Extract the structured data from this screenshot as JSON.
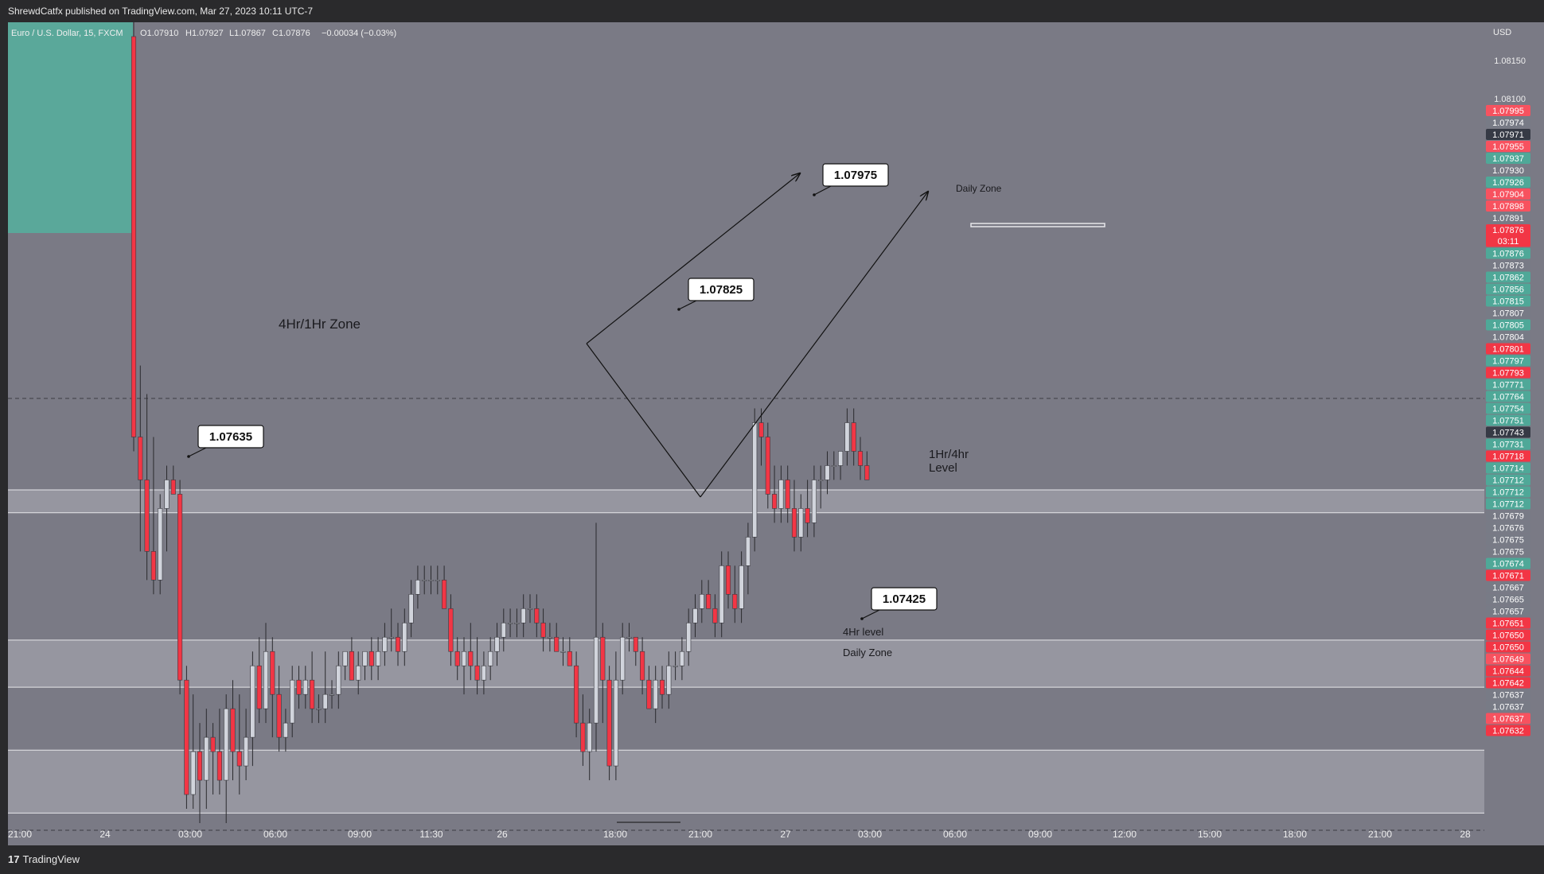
{
  "header": {
    "published_by": "ShrewdCatfx published on TradingView.com, Mar 27, 2023 10:11 UTC-7"
  },
  "footer": {
    "brand": "TradingView"
  },
  "colors": {
    "background": "#7a7a85",
    "up": "#d1d4dc",
    "down": "#f23645",
    "zone": "#a0a0a9",
    "teal": "#5aa89a"
  },
  "chart_data": {
    "type": "candlestick",
    "symbol_line": "Euro / U.S. Dollar, 15, FXCM",
    "ohlc": {
      "O": "O1.07910",
      "H": "H1.07927",
      "L": "L1.07867",
      "C": "C1.07876",
      "change": "−0.00034 (−0.03%)"
    },
    "currency": "USD",
    "ylim": [
      1.0762,
      1.0819
    ],
    "time_ticks": [
      "21:00",
      "24",
      "03:00",
      "06:00",
      "09:00",
      "11:30",
      "26",
      "18:00",
      "21:00",
      "27",
      "03:00",
      "06:00",
      "09:00",
      "12:00",
      "15:00",
      "18:00",
      "21:00",
      "28"
    ],
    "price_ticks": [
      "1.08150",
      "1.08100"
    ],
    "price_labels": [
      {
        "value": "1.07995",
        "color": "lightred"
      },
      {
        "value": "1.07974",
        "color": "gray"
      },
      {
        "value": "1.07971",
        "color": "dark"
      },
      {
        "value": "1.07955",
        "color": "lightred"
      },
      {
        "value": "1.07937",
        "color": "teal"
      },
      {
        "value": "1.07930",
        "color": "gray"
      },
      {
        "value": "1.07926",
        "color": "teal"
      },
      {
        "value": "1.07904",
        "color": "lightred"
      },
      {
        "value": "1.07898",
        "color": "lightred"
      },
      {
        "value": "1.07891",
        "color": "gray"
      },
      {
        "value": "1.07876",
        "color": "red",
        "sub": "03:11"
      },
      {
        "value": "1.07876",
        "color": "teal"
      },
      {
        "value": "1.07873",
        "color": "gray"
      },
      {
        "value": "1.07862",
        "color": "teal"
      },
      {
        "value": "1.07856",
        "color": "teal"
      },
      {
        "value": "1.07815",
        "color": "teal"
      },
      {
        "value": "1.07807",
        "color": "gray"
      },
      {
        "value": "1.07805",
        "color": "teal"
      },
      {
        "value": "1.07804",
        "color": "gray"
      },
      {
        "value": "1.07801",
        "color": "red"
      },
      {
        "value": "1.07797",
        "color": "teal"
      },
      {
        "value": "1.07793",
        "color": "red"
      },
      {
        "value": "1.07771",
        "color": "teal"
      },
      {
        "value": "1.07764",
        "color": "teal"
      },
      {
        "value": "1.07754",
        "color": "teal"
      },
      {
        "value": "1.07751",
        "color": "teal"
      },
      {
        "value": "1.07743",
        "color": "dark"
      },
      {
        "value": "1.07731",
        "color": "teal"
      },
      {
        "value": "1.07718",
        "color": "red"
      },
      {
        "value": "1.07714",
        "color": "teal"
      },
      {
        "value": "1.07712",
        "color": "teal"
      },
      {
        "value": "1.07712",
        "color": "teal"
      },
      {
        "value": "1.07712",
        "color": "teal"
      },
      {
        "value": "1.07679",
        "color": "gray"
      },
      {
        "value": "1.07676",
        "color": "gray"
      },
      {
        "value": "1.07675",
        "color": "gray"
      },
      {
        "value": "1.07675",
        "color": "gray"
      },
      {
        "value": "1.07674",
        "color": "teal"
      },
      {
        "value": "1.07671",
        "color": "red"
      },
      {
        "value": "1.07667",
        "color": "gray"
      },
      {
        "value": "1.07665",
        "color": "gray"
      },
      {
        "value": "1.07657",
        "color": "gray"
      },
      {
        "value": "1.07651",
        "color": "red"
      },
      {
        "value": "1.07650",
        "color": "red"
      },
      {
        "value": "1.07650",
        "color": "red"
      },
      {
        "value": "1.07649",
        "color": "lightred"
      },
      {
        "value": "1.07644",
        "color": "red"
      },
      {
        "value": "1.07642",
        "color": "red"
      },
      {
        "value": "1.07637",
        "color": "gray"
      },
      {
        "value": "1.07637",
        "color": "gray"
      },
      {
        "value": "1.07637",
        "color": "lightred"
      },
      {
        "value": "1.07632",
        "color": "red"
      }
    ],
    "zones": [
      {
        "name": "4Hr/1Hr Zone",
        "top": 1.07863,
        "bottom": 1.07847
      },
      {
        "name": "1Hr/4hr Level",
        "top": 1.07758,
        "bottom": 1.07725
      },
      {
        "name": "4Hr level / Daily Zone",
        "top": 1.07681,
        "bottom": 1.07637
      }
    ],
    "daily_zone_dashed_levels": [
      1.07927,
      1.07625
    ],
    "annotations": [
      {
        "kind": "callout",
        "text": "1.07975"
      },
      {
        "kind": "callout",
        "text": "1.07825"
      },
      {
        "kind": "callout",
        "text": "1.07635"
      },
      {
        "kind": "callout",
        "text": "1.07425"
      },
      {
        "kind": "label",
        "text": "Daily Zone"
      },
      {
        "kind": "label",
        "text": "4Hr/1Hr Zone"
      },
      {
        "kind": "label",
        "text": "1Hr/4hr"
      },
      {
        "kind": "label",
        "text": "Level"
      },
      {
        "kind": "label",
        "text": "4Hr level"
      },
      {
        "kind": "label",
        "text": "Daily Zone"
      }
    ],
    "candles": [
      {
        "o": 1.0818,
        "h": 1.0819,
        "l": 1.0789,
        "c": 1.079
      },
      {
        "o": 1.079,
        "h": 1.0795,
        "l": 1.0782,
        "c": 1.0787
      },
      {
        "o": 1.0787,
        "h": 1.0793,
        "l": 1.078,
        "c": 1.0782
      },
      {
        "o": 1.0782,
        "h": 1.079,
        "l": 1.0779,
        "c": 1.078
      },
      {
        "o": 1.078,
        "h": 1.0786,
        "l": 1.0779,
        "c": 1.0785
      },
      {
        "o": 1.0785,
        "h": 1.0788,
        "l": 1.0782,
        "c": 1.0787
      },
      {
        "o": 1.0787,
        "h": 1.0788,
        "l": 1.0786,
        "c": 1.0786
      },
      {
        "o": 1.0786,
        "h": 1.0787,
        "l": 1.0772,
        "c": 1.0773
      },
      {
        "o": 1.0773,
        "h": 1.0774,
        "l": 1.0764,
        "c": 1.0765
      },
      {
        "o": 1.0765,
        "h": 1.0772,
        "l": 1.0764,
        "c": 1.0768
      },
      {
        "o": 1.0768,
        "h": 1.077,
        "l": 1.0763,
        "c": 1.0766
      },
      {
        "o": 1.0766,
        "h": 1.0771,
        "l": 1.0764,
        "c": 1.0769
      },
      {
        "o": 1.0769,
        "h": 1.077,
        "l": 1.0765,
        "c": 1.0768
      },
      {
        "o": 1.0768,
        "h": 1.0771,
        "l": 1.0765,
        "c": 1.0766
      },
      {
        "o": 1.0766,
        "h": 1.0772,
        "l": 1.0763,
        "c": 1.0771
      },
      {
        "o": 1.0771,
        "h": 1.0773,
        "l": 1.0766,
        "c": 1.0768
      },
      {
        "o": 1.0768,
        "h": 1.0772,
        "l": 1.0765,
        "c": 1.0767
      },
      {
        "o": 1.0767,
        "h": 1.0771,
        "l": 1.0766,
        "c": 1.0769
      },
      {
        "o": 1.0769,
        "h": 1.0775,
        "l": 1.0767,
        "c": 1.0774
      },
      {
        "o": 1.0774,
        "h": 1.0776,
        "l": 1.077,
        "c": 1.0771
      },
      {
        "o": 1.0771,
        "h": 1.0777,
        "l": 1.077,
        "c": 1.0775
      },
      {
        "o": 1.0775,
        "h": 1.0776,
        "l": 1.0769,
        "c": 1.0772
      },
      {
        "o": 1.0772,
        "h": 1.0774,
        "l": 1.0768,
        "c": 1.0769
      },
      {
        "o": 1.0769,
        "h": 1.0771,
        "l": 1.0768,
        "c": 1.077
      },
      {
        "o": 1.077,
        "h": 1.0774,
        "l": 1.0769,
        "c": 1.0773
      },
      {
        "o": 1.0773,
        "h": 1.0774,
        "l": 1.0771,
        "c": 1.0772
      },
      {
        "o": 1.0772,
        "h": 1.0774,
        "l": 1.0771,
        "c": 1.0773
      },
      {
        "o": 1.0773,
        "h": 1.0775,
        "l": 1.077,
        "c": 1.0771
      },
      {
        "o": 1.0771,
        "h": 1.0772,
        "l": 1.077,
        "c": 1.0771
      },
      {
        "o": 1.0771,
        "h": 1.0775,
        "l": 1.077,
        "c": 1.0772
      },
      {
        "o": 1.0772,
        "h": 1.0773,
        "l": 1.0771,
        "c": 1.0772
      },
      {
        "o": 1.0772,
        "h": 1.0775,
        "l": 1.0771,
        "c": 1.0774
      },
      {
        "o": 1.0774,
        "h": 1.0775,
        "l": 1.0773,
        "c": 1.0775
      },
      {
        "o": 1.0775,
        "h": 1.0776,
        "l": 1.0773,
        "c": 1.0773
      },
      {
        "o": 1.0773,
        "h": 1.0775,
        "l": 1.0772,
        "c": 1.0774
      },
      {
        "o": 1.0774,
        "h": 1.0775,
        "l": 1.0773,
        "c": 1.0775
      },
      {
        "o": 1.0775,
        "h": 1.0776,
        "l": 1.0773,
        "c": 1.0774
      },
      {
        "o": 1.0774,
        "h": 1.0776,
        "l": 1.0773,
        "c": 1.0775
      },
      {
        "o": 1.0775,
        "h": 1.0777,
        "l": 1.0774,
        "c": 1.0776
      },
      {
        "o": 1.0776,
        "h": 1.0778,
        "l": 1.0775,
        "c": 1.0776
      },
      {
        "o": 1.0776,
        "h": 1.0777,
        "l": 1.0774,
        "c": 1.0775
      },
      {
        "o": 1.0775,
        "h": 1.0778,
        "l": 1.0774,
        "c": 1.0777
      },
      {
        "o": 1.0777,
        "h": 1.078,
        "l": 1.0776,
        "c": 1.0779
      },
      {
        "o": 1.0779,
        "h": 1.0781,
        "l": 1.0778,
        "c": 1.078
      },
      {
        "o": 1.078,
        "h": 1.0781,
        "l": 1.0779,
        "c": 1.078
      },
      {
        "o": 1.078,
        "h": 1.0781,
        "l": 1.0779,
        "c": 1.078
      },
      {
        "o": 1.078,
        "h": 1.0781,
        "l": 1.0779,
        "c": 1.078
      },
      {
        "o": 1.078,
        "h": 1.0781,
        "l": 1.0778,
        "c": 1.0778
      },
      {
        "o": 1.0778,
        "h": 1.0779,
        "l": 1.0774,
        "c": 1.0775
      },
      {
        "o": 1.0775,
        "h": 1.0776,
        "l": 1.0773,
        "c": 1.0774
      },
      {
        "o": 1.0774,
        "h": 1.0776,
        "l": 1.0772,
        "c": 1.0775
      },
      {
        "o": 1.0775,
        "h": 1.0777,
        "l": 1.0773,
        "c": 1.0774
      },
      {
        "o": 1.0774,
        "h": 1.0776,
        "l": 1.0772,
        "c": 1.0773
      },
      {
        "o": 1.0773,
        "h": 1.0775,
        "l": 1.0772,
        "c": 1.0774
      },
      {
        "o": 1.0774,
        "h": 1.0776,
        "l": 1.0773,
        "c": 1.0775
      },
      {
        "o": 1.0775,
        "h": 1.0777,
        "l": 1.0774,
        "c": 1.0776
      },
      {
        "o": 1.0776,
        "h": 1.0778,
        "l": 1.0775,
        "c": 1.0777
      },
      {
        "o": 1.0777,
        "h": 1.0778,
        "l": 1.0776,
        "c": 1.0777
      },
      {
        "o": 1.0777,
        "h": 1.0778,
        "l": 1.0776,
        "c": 1.0777
      },
      {
        "o": 1.0777,
        "h": 1.0779,
        "l": 1.0776,
        "c": 1.0778
      },
      {
        "o": 1.0778,
        "h": 1.0779,
        "l": 1.0777,
        "c": 1.0778
      },
      {
        "o": 1.0778,
        "h": 1.0779,
        "l": 1.0776,
        "c": 1.0777
      },
      {
        "o": 1.0777,
        "h": 1.0778,
        "l": 1.0775,
        "c": 1.0776
      },
      {
        "o": 1.0776,
        "h": 1.0777,
        "l": 1.0775,
        "c": 1.0776
      },
      {
        "o": 1.0776,
        "h": 1.0777,
        "l": 1.0775,
        "c": 1.0775
      },
      {
        "o": 1.0775,
        "h": 1.0776,
        "l": 1.0774,
        "c": 1.0775
      },
      {
        "o": 1.0775,
        "h": 1.0776,
        "l": 1.0774,
        "c": 1.0774
      },
      {
        "o": 1.0774,
        "h": 1.0775,
        "l": 1.0769,
        "c": 1.077
      },
      {
        "o": 1.077,
        "h": 1.0772,
        "l": 1.0767,
        "c": 1.0768
      },
      {
        "o": 1.0768,
        "h": 1.0771,
        "l": 1.0766,
        "c": 1.077
      },
      {
        "o": 1.077,
        "h": 1.0784,
        "l": 1.0768,
        "c": 1.0776
      },
      {
        "o": 1.0776,
        "h": 1.0777,
        "l": 1.077,
        "c": 1.0773
      },
      {
        "o": 1.0773,
        "h": 1.0774,
        "l": 1.0766,
        "c": 1.0767
      },
      {
        "o": 1.0767,
        "h": 1.0775,
        "l": 1.0766,
        "c": 1.0773
      },
      {
        "o": 1.0773,
        "h": 1.0777,
        "l": 1.0772,
        "c": 1.0776
      },
      {
        "o": 1.0776,
        "h": 1.0777,
        "l": 1.0775,
        "c": 1.0776
      },
      {
        "o": 1.0776,
        "h": 1.0776,
        "l": 1.0774,
        "c": 1.0775
      },
      {
        "o": 1.0775,
        "h": 1.0776,
        "l": 1.0772,
        "c": 1.0773
      },
      {
        "o": 1.0773,
        "h": 1.0774,
        "l": 1.0771,
        "c": 1.0771
      },
      {
        "o": 1.0771,
        "h": 1.0774,
        "l": 1.077,
        "c": 1.0773
      },
      {
        "o": 1.0773,
        "h": 1.0774,
        "l": 1.0771,
        "c": 1.0772
      },
      {
        "o": 1.0772,
        "h": 1.0775,
        "l": 1.0771,
        "c": 1.0774
      },
      {
        "o": 1.0774,
        "h": 1.0775,
        "l": 1.0773,
        "c": 1.0774
      },
      {
        "o": 1.0774,
        "h": 1.0776,
        "l": 1.0773,
        "c": 1.0775
      },
      {
        "o": 1.0775,
        "h": 1.0778,
        "l": 1.0774,
        "c": 1.0777
      },
      {
        "o": 1.0777,
        "h": 1.0779,
        "l": 1.0776,
        "c": 1.0778
      },
      {
        "o": 1.0778,
        "h": 1.078,
        "l": 1.0777,
        "c": 1.0779
      },
      {
        "o": 1.0779,
        "h": 1.078,
        "l": 1.0778,
        "c": 1.0778
      },
      {
        "o": 1.0778,
        "h": 1.0779,
        "l": 1.0776,
        "c": 1.0777
      },
      {
        "o": 1.0777,
        "h": 1.0782,
        "l": 1.0776,
        "c": 1.0781
      },
      {
        "o": 1.0781,
        "h": 1.0782,
        "l": 1.0778,
        "c": 1.0779
      },
      {
        "o": 1.0779,
        "h": 1.0781,
        "l": 1.0777,
        "c": 1.0778
      },
      {
        "o": 1.0778,
        "h": 1.0782,
        "l": 1.0777,
        "c": 1.0781
      },
      {
        "o": 1.0781,
        "h": 1.0784,
        "l": 1.0779,
        "c": 1.0783
      },
      {
        "o": 1.0783,
        "h": 1.0792,
        "l": 1.0782,
        "c": 1.0791
      },
      {
        "o": 1.0791,
        "h": 1.0792,
        "l": 1.0788,
        "c": 1.079
      },
      {
        "o": 1.079,
        "h": 1.0791,
        "l": 1.0785,
        "c": 1.0786
      },
      {
        "o": 1.0786,
        "h": 1.0788,
        "l": 1.0784,
        "c": 1.0785
      },
      {
        "o": 1.0785,
        "h": 1.0788,
        "l": 1.0784,
        "c": 1.0787
      },
      {
        "o": 1.0787,
        "h": 1.0788,
        "l": 1.0784,
        "c": 1.0785
      },
      {
        "o": 1.0785,
        "h": 1.0787,
        "l": 1.0782,
        "c": 1.0783
      },
      {
        "o": 1.0783,
        "h": 1.0786,
        "l": 1.0782,
        "c": 1.0785
      },
      {
        "o": 1.0785,
        "h": 1.0787,
        "l": 1.0783,
        "c": 1.0784
      },
      {
        "o": 1.0784,
        "h": 1.0788,
        "l": 1.0783,
        "c": 1.0787
      },
      {
        "o": 1.0787,
        "h": 1.0788,
        "l": 1.0785,
        "c": 1.0787
      },
      {
        "o": 1.0787,
        "h": 1.0789,
        "l": 1.0786,
        "c": 1.0788
      },
      {
        "o": 1.0788,
        "h": 1.0789,
        "l": 1.0787,
        "c": 1.0788
      },
      {
        "o": 1.0788,
        "h": 1.0789,
        "l": 1.0787,
        "c": 1.0789
      },
      {
        "o": 1.0789,
        "h": 1.0792,
        "l": 1.0788,
        "c": 1.0791
      },
      {
        "o": 1.0791,
        "h": 1.0792,
        "l": 1.0788,
        "c": 1.0789
      },
      {
        "o": 1.0789,
        "h": 1.079,
        "l": 1.0787,
        "c": 1.0788
      },
      {
        "o": 1.0788,
        "h": 1.0789,
        "l": 1.0787,
        "c": 1.0787
      }
    ]
  }
}
